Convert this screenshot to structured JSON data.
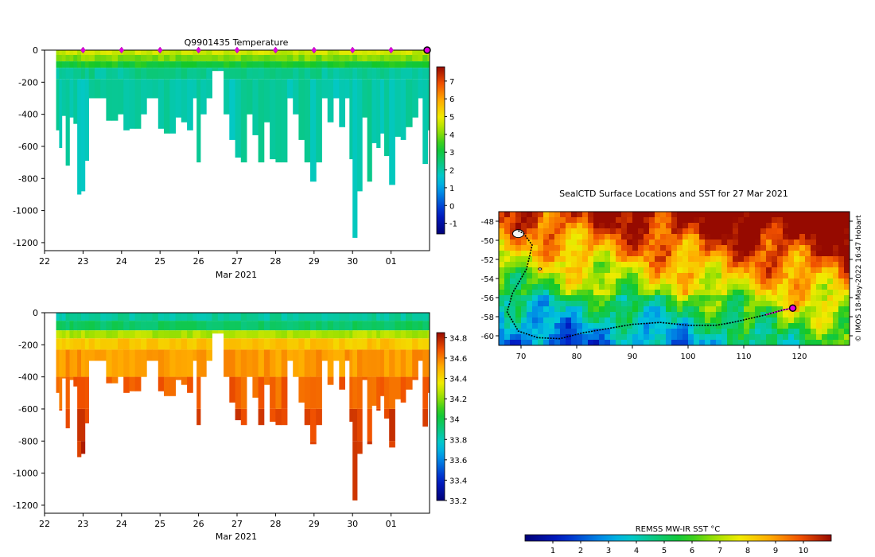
{
  "chart_data": [
    {
      "type": "heatmap",
      "variable": "temperature",
      "title": "Q9901435  Temperature",
      "xlabel": "Mar 2021",
      "ylabel": "",
      "x_ticks": [
        "22",
        "23",
        "24",
        "25",
        "26",
        "27",
        "28",
        "29",
        "30",
        "01"
      ],
      "xlim": [
        22,
        32
      ],
      "ylim": [
        -1250,
        0
      ],
      "y_ticks": [
        0,
        -200,
        -400,
        -600,
        -800,
        -1000,
        -1200
      ],
      "colorbar": {
        "min": -1.6,
        "max": 7.8,
        "ticks": [
          -1,
          0,
          1,
          2,
          3,
          4,
          5,
          6,
          7
        ]
      },
      "layers": [
        {
          "top": 0,
          "bottom": -30,
          "value": 4.6
        },
        {
          "top": -30,
          "bottom": -70,
          "value": 4.0
        },
        {
          "top": -70,
          "bottom": -110,
          "value": 3.2
        },
        {
          "top": -110,
          "bottom": -180,
          "value": 2.2
        },
        {
          "top": -180,
          "bottom": -1200,
          "value": 2.0
        }
      ],
      "profile_day_markers": [
        23,
        24,
        25,
        26,
        27,
        28,
        29,
        30,
        31
      ],
      "current_position_day": 32
    },
    {
      "type": "heatmap",
      "variable": "salinity",
      "title": "",
      "xlabel": "Mar 2021",
      "ylabel": "",
      "x_ticks": [
        "22",
        "23",
        "24",
        "25",
        "26",
        "27",
        "28",
        "29",
        "30",
        "01"
      ],
      "xlim": [
        22,
        32
      ],
      "ylim": [
        -1250,
        0
      ],
      "y_ticks": [
        0,
        -200,
        -400,
        -600,
        -800,
        -1000,
        -1200
      ],
      "colorbar": {
        "min": 33.2,
        "max": 34.85,
        "ticks": [
          33.2,
          33.4,
          33.6,
          33.8,
          34,
          34.2,
          34.4,
          34.6,
          34.8
        ]
      },
      "layers": [
        {
          "top": 0,
          "bottom": -50,
          "value": 33.85
        },
        {
          "top": -50,
          "bottom": -110,
          "value": 33.95
        },
        {
          "top": -110,
          "bottom": -160,
          "value": 34.25
        },
        {
          "top": -160,
          "bottom": -230,
          "value": 34.45
        },
        {
          "top": -230,
          "bottom": -400,
          "value": 34.55
        },
        {
          "top": -400,
          "bottom": -600,
          "value": 34.65
        },
        {
          "top": -600,
          "bottom": -800,
          "value": 34.72
        },
        {
          "top": -800,
          "bottom": -1200,
          "value": 34.76
        }
      ]
    },
    {
      "type": "map",
      "title": "SealCTD Surface Locations and SST for 27 Mar 2021",
      "x_ticks": [
        70,
        80,
        90,
        100,
        110,
        120
      ],
      "y_ticks": [
        -48,
        -50,
        -52,
        -54,
        -56,
        -58,
        -60
      ],
      "xlim": [
        66,
        129
      ],
      "ylim": [
        -61,
        -47
      ],
      "colorbar_label": "REMSS MW-IR SST °C",
      "colorbar": {
        "min": 0,
        "max": 11,
        "ticks": [
          1,
          2,
          3,
          4,
          5,
          6,
          7,
          8,
          9,
          10
        ]
      },
      "track": [
        [
          69.5,
          -49.0
        ],
        [
          70.5,
          -49.3
        ],
        [
          72.0,
          -50.5
        ],
        [
          71.0,
          -53.0
        ],
        [
          68.5,
          -55.5
        ],
        [
          67.5,
          -57.5
        ],
        [
          69.5,
          -59.5
        ],
        [
          73.0,
          -60.2
        ],
        [
          77.0,
          -60.3
        ],
        [
          81.0,
          -59.7
        ],
        [
          86.0,
          -59.2
        ],
        [
          90.0,
          -58.8
        ],
        [
          95.0,
          -58.6
        ],
        [
          100.0,
          -58.9
        ],
        [
          105.0,
          -58.9
        ],
        [
          108.0,
          -58.6
        ],
        [
          111.0,
          -58.2
        ],
        [
          114.0,
          -57.8
        ],
        [
          117.0,
          -57.3
        ],
        [
          118.8,
          -57.1
        ]
      ],
      "recent_track": [
        [
          114.0,
          -57.8
        ],
        [
          117.0,
          -57.3
        ],
        [
          118.8,
          -57.1
        ]
      ],
      "current_position": [
        118.8,
        -57.1
      ]
    }
  ],
  "credit_text": "© IMOS 18-May-2022 16:47 Hobart"
}
